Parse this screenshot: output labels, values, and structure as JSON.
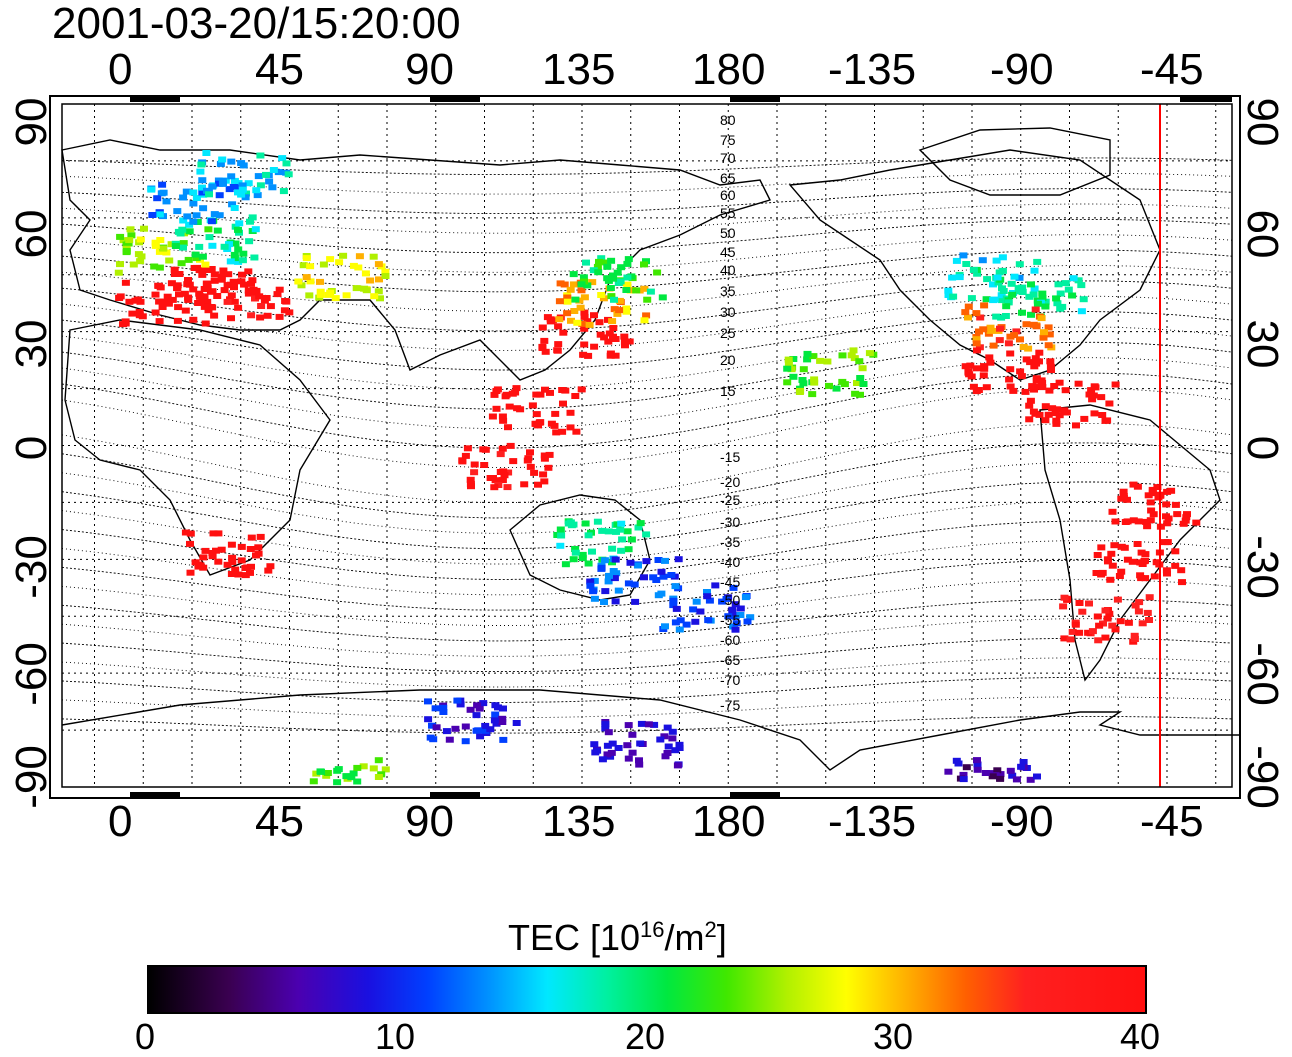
{
  "title": "2001-03-20/15:20:00",
  "lon_ticks": [
    "0",
    "45",
    "90",
    "135",
    "180",
    "-135",
    "-90",
    "-45"
  ],
  "lat_ticks": [
    "90",
    "60",
    "30",
    "0",
    "-30",
    "-60",
    "-90"
  ],
  "contour_labels": [
    "80",
    "75",
    "70",
    "65",
    "60",
    "55",
    "50",
    "45",
    "40",
    "35",
    "30",
    "25",
    "20",
    "15",
    "-15",
    "-20",
    "-25",
    "-30",
    "-35",
    "-40",
    "-45",
    "-50",
    "-55",
    "-60",
    "-65",
    "-70",
    "-75"
  ],
  "colorbar": {
    "label_prefix": "TEC  [10",
    "label_exp1": "16",
    "label_mid": "/m",
    "label_exp2": "2",
    "label_suffix": "]",
    "ticks": [
      "0",
      "10",
      "20",
      "30",
      "40"
    ],
    "range": [
      0,
      40
    ]
  },
  "terminator_color": "#ff0000",
  "tec_clusters": [
    {
      "lon": 5,
      "lat": 38,
      "tec": 40
    },
    {
      "lon": 20,
      "lat": 42,
      "tec": 40
    },
    {
      "lon": 30,
      "lat": 40,
      "tec": 38
    },
    {
      "lon": 5,
      "lat": 52,
      "tec": 24
    },
    {
      "lon": 20,
      "lat": 55,
      "tec": 18
    },
    {
      "lon": 15,
      "lat": 65,
      "tec": 12
    },
    {
      "lon": 30,
      "lat": 72,
      "tec": 14
    },
    {
      "lon": 60,
      "lat": 45,
      "tec": 26
    },
    {
      "lon": 135,
      "lat": 30,
      "tec": 40
    },
    {
      "lon": 140,
      "lat": 38,
      "tec": 30
    },
    {
      "lon": 145,
      "lat": 45,
      "tec": 20
    },
    {
      "lon": 120,
      "lat": 10,
      "tec": 40
    },
    {
      "lon": 110,
      "lat": -5,
      "tec": 38
    },
    {
      "lon": 140,
      "lat": -25,
      "tec": 18
    },
    {
      "lon": 150,
      "lat": -35,
      "tec": 10
    },
    {
      "lon": 172,
      "lat": -42,
      "tec": 10
    },
    {
      "lon": -100,
      "lat": 45,
      "tec": 16
    },
    {
      "lon": -85,
      "lat": 40,
      "tec": 18
    },
    {
      "lon": -95,
      "lat": 32,
      "tec": 32
    },
    {
      "lon": -95,
      "lat": 20,
      "tec": 40
    },
    {
      "lon": -75,
      "lat": 12,
      "tec": 40
    },
    {
      "lon": -50,
      "lat": -15,
      "tec": 40
    },
    {
      "lon": -55,
      "lat": -30,
      "tec": 40
    },
    {
      "lon": -65,
      "lat": -45,
      "tec": 36
    },
    {
      "lon": 25,
      "lat": -28,
      "tec": 40
    },
    {
      "lon": -150,
      "lat": 20,
      "tec": 22
    },
    {
      "lon": 150,
      "lat": -78,
      "tec": 6
    },
    {
      "lon": 100,
      "lat": -72,
      "tec": 8
    },
    {
      "lon": -100,
      "lat": -88,
      "tec": 4
    },
    {
      "lon": 60,
      "lat": -88,
      "tec": 22
    }
  ]
}
